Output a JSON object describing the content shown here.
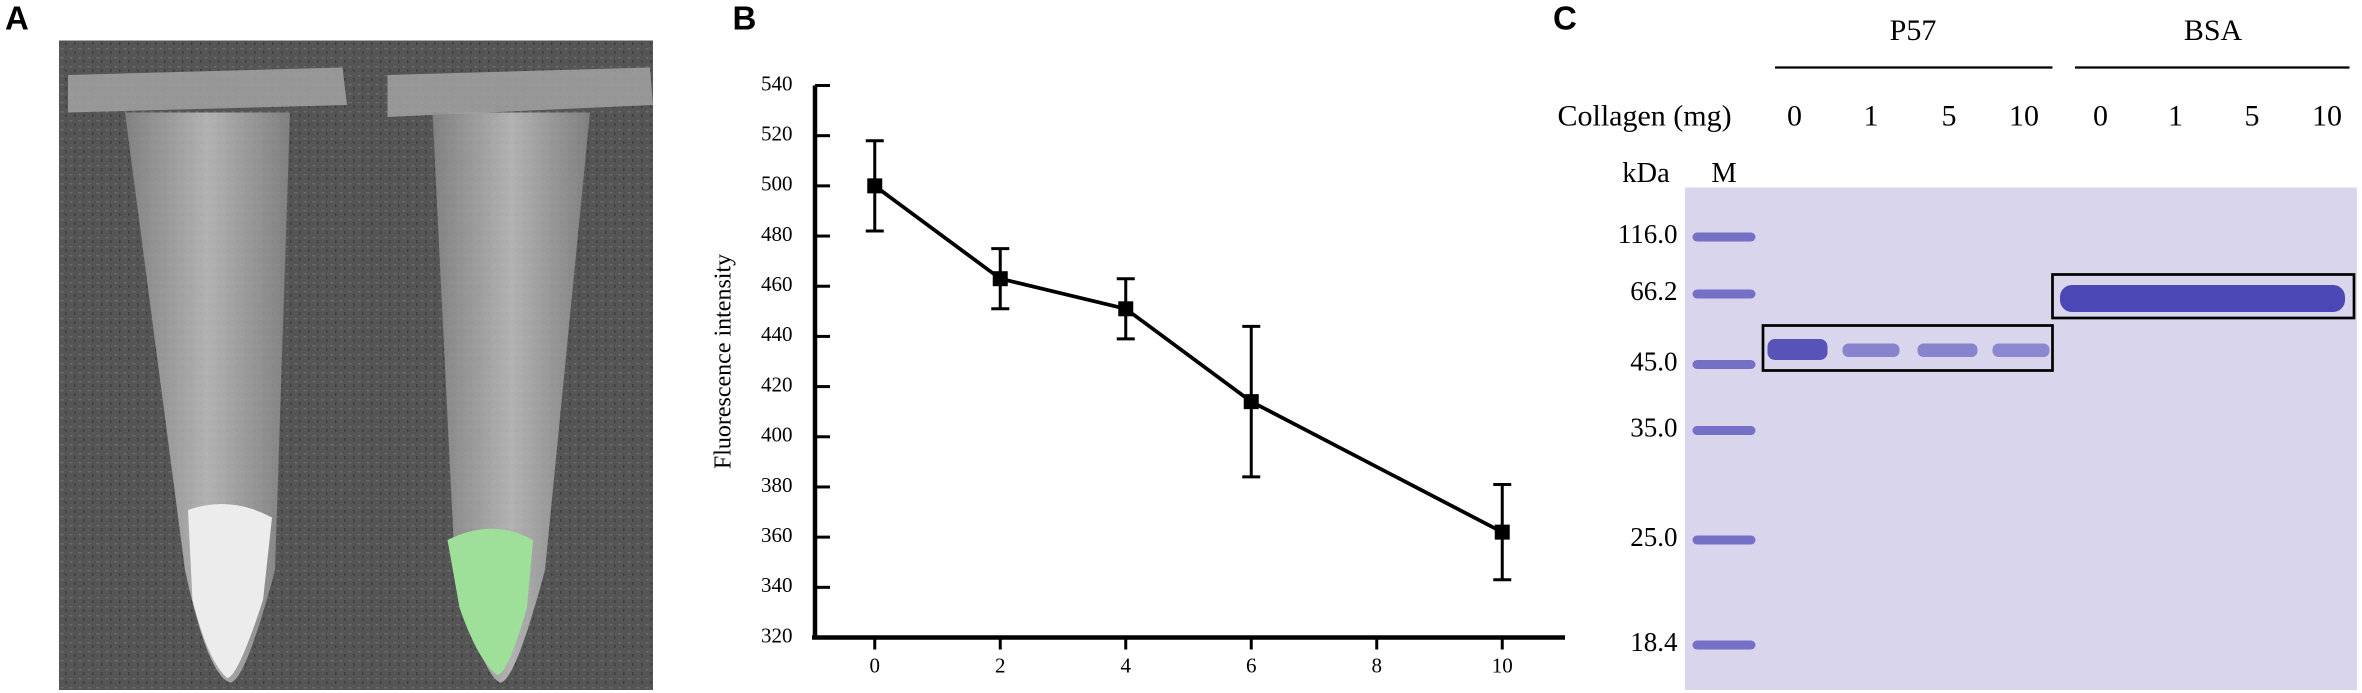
{
  "panel_labels": [
    "A",
    "B",
    "C"
  ],
  "chart_data": {
    "type": "line",
    "y_label": "Fluorescence intensity",
    "x": [
      0,
      2,
      4,
      6,
      10
    ],
    "values": [
      500,
      463,
      451,
      414,
      362
    ],
    "errors": [
      18,
      12,
      12,
      30,
      19
    ],
    "color": "#000000",
    "xlim": [
      -1,
      11
    ],
    "xticks": [
      0,
      2,
      4,
      6,
      8,
      10
    ],
    "ylim": [
      320,
      540
    ],
    "yticks": [
      320,
      340,
      360,
      380,
      400,
      420,
      440,
      460,
      480,
      500,
      520,
      540
    ]
  },
  "gel": {
    "groups": [
      "P57",
      "BSA"
    ],
    "row_label": "Collagen (mg)",
    "lanes": [
      "0",
      "1",
      "5",
      "10",
      "0",
      "1",
      "5",
      "10"
    ],
    "unit_label": "kDa",
    "marker_lane_label": "M",
    "markers": [
      "116.0",
      "66.2",
      "45.0",
      "35.0",
      "25.0",
      "18.4"
    ]
  }
}
